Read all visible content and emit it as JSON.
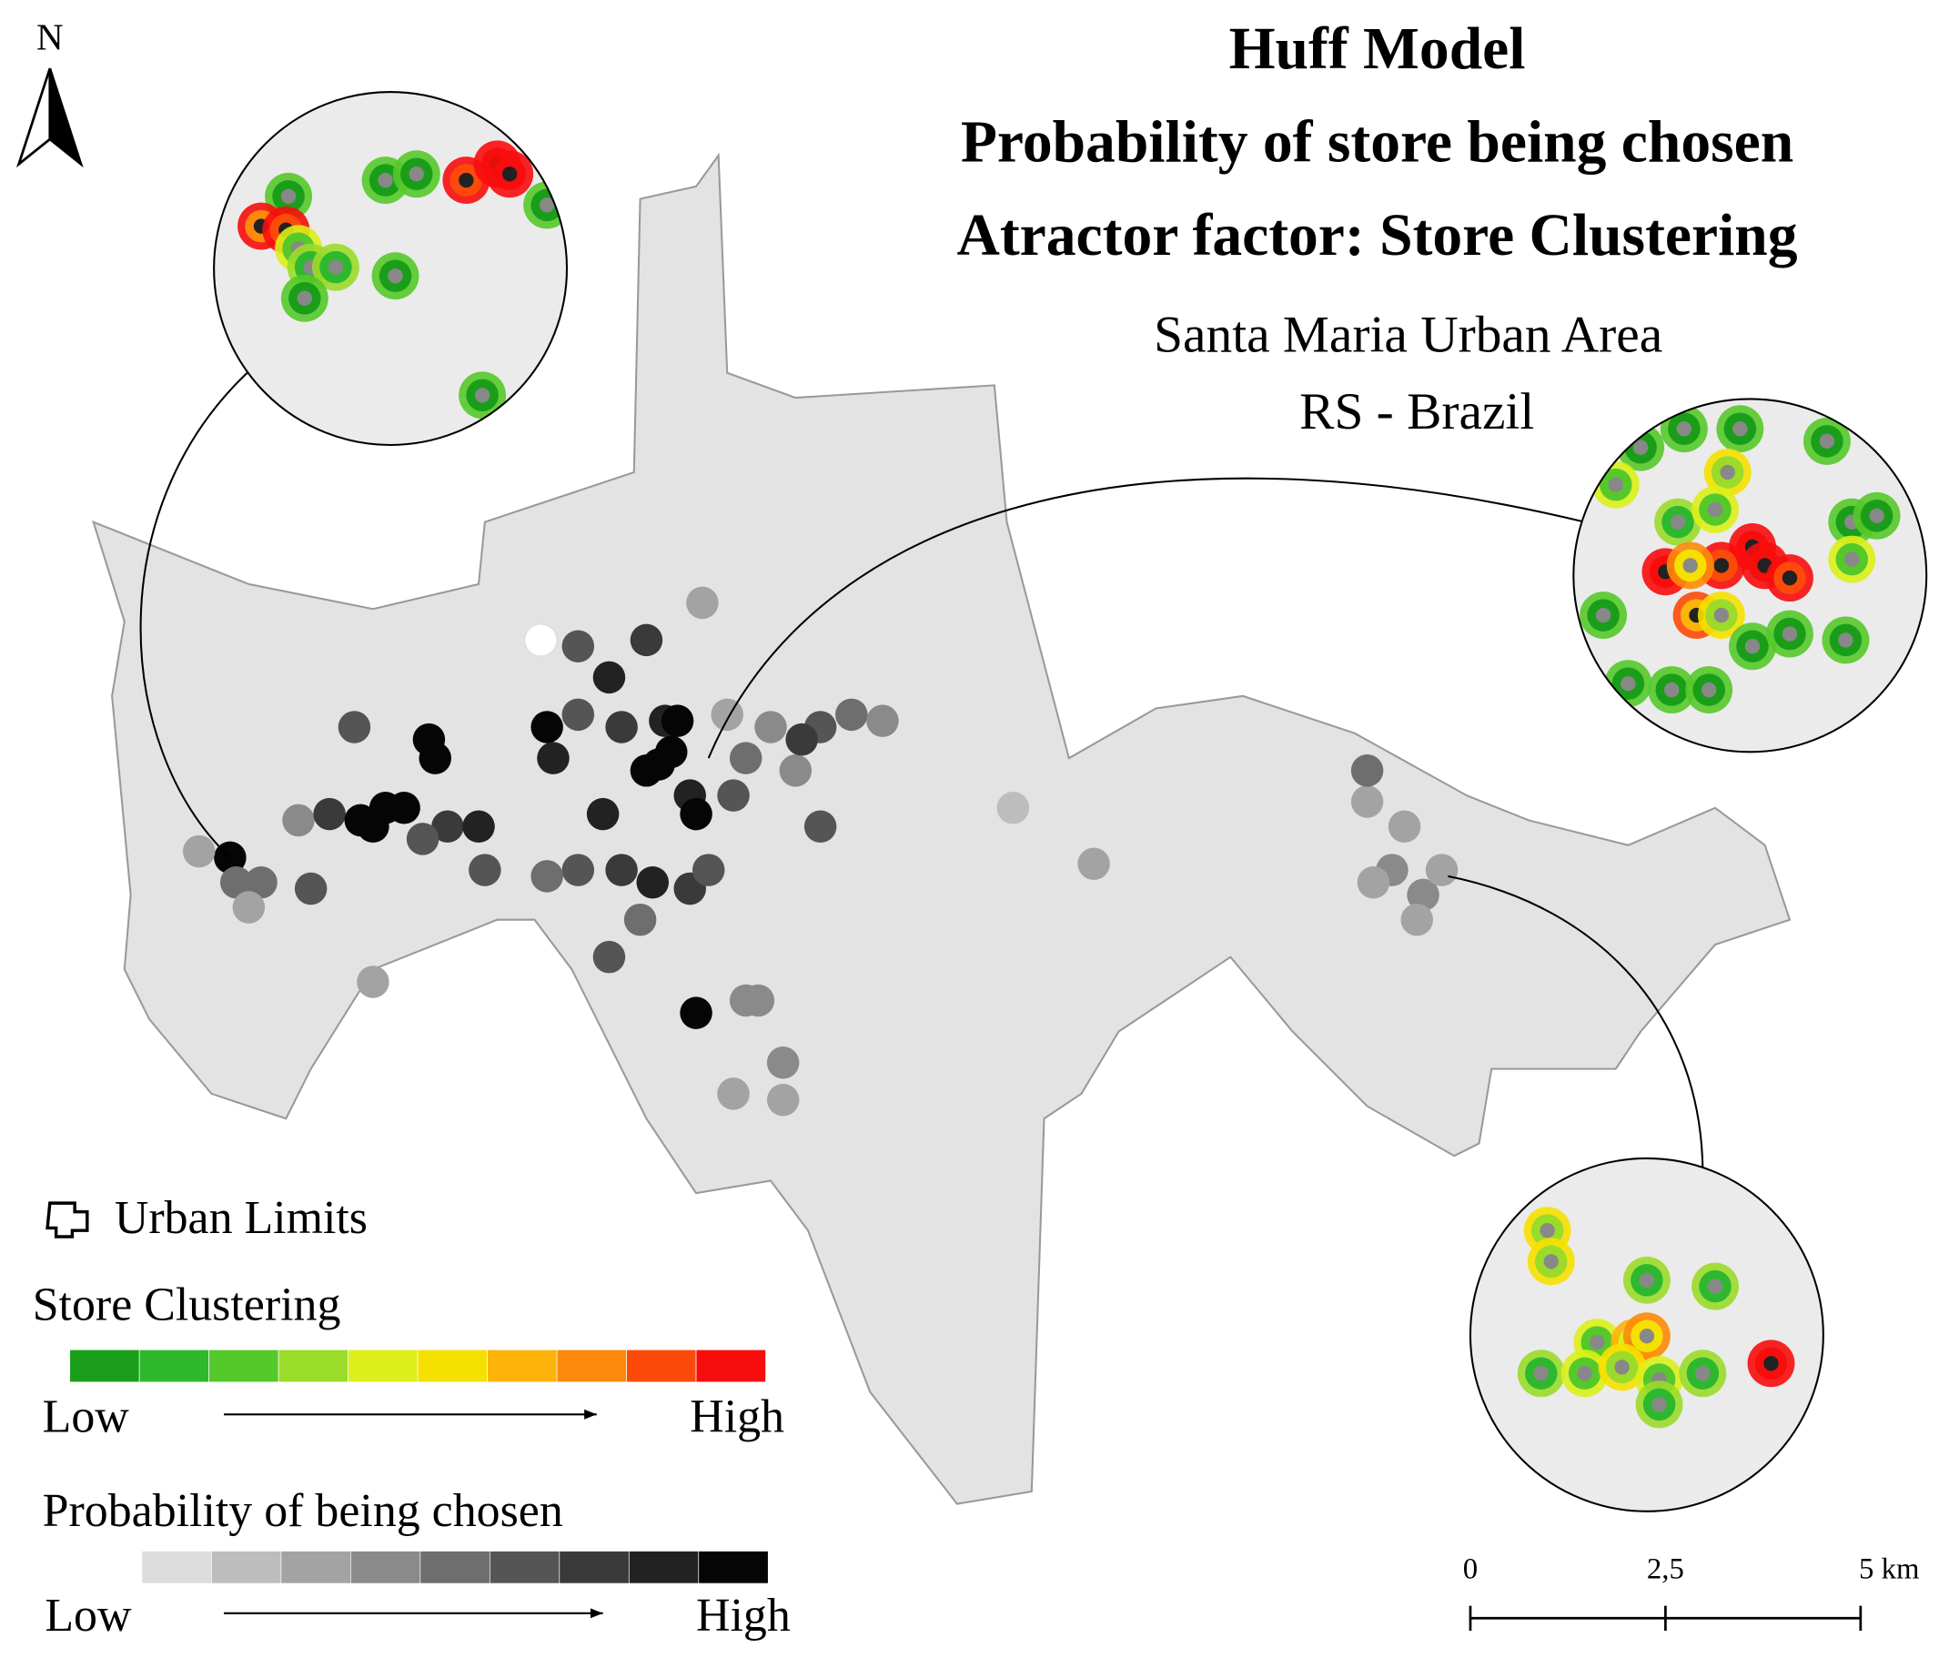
{
  "map": {
    "north": "N",
    "title": [
      "Huff Model",
      "Probability of store being chosen",
      "Atractor factor: Store Clustering"
    ],
    "subtitle": [
      "Santa Maria Urban Area",
      "RS - Brazil"
    ],
    "legend": {
      "urban_limits": "Urban Limits",
      "store_clustering": {
        "title": "Store Clustering",
        "low": "Low",
        "high": "High",
        "colors": [
          "#1a9e1a",
          "#2eb82e",
          "#55c92a",
          "#9bdb2a",
          "#dcef1a",
          "#f6e000",
          "#fdb30a",
          "#fd8a0a",
          "#fc4a0a",
          "#f80d0d"
        ]
      },
      "probability": {
        "title": "Probability of being chosen",
        "low": "Low",
        "high": "High",
        "colors": [
          "#ffffff",
          "#dcdcdc",
          "#bdbdbd",
          "#a3a3a3",
          "#8a8a8a",
          "#6e6e6e",
          "#555555",
          "#3a3a3a",
          "#222222",
          "#050505"
        ]
      }
    },
    "scale_bar": [
      "0",
      "2,5",
      "5 km"
    ]
  }
}
